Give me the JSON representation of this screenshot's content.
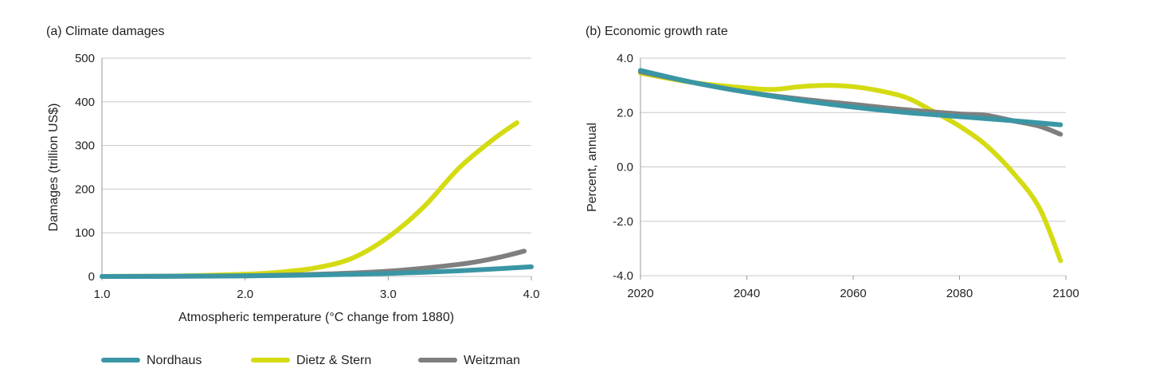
{
  "colors": {
    "nordhaus": "#3a96a4",
    "dietz_stern": "#d4db13",
    "weitzman": "#7f7f7f"
  },
  "legend": {
    "nordhaus": "Nordhaus",
    "dietz_stern": "Dietz & Stern",
    "weitzman": "Weitzman"
  },
  "chart_data": [
    {
      "type": "line",
      "title": "(a) Climate damages",
      "xlabel": "Atmospheric temperature (°C change from 1880)",
      "ylabel": "Damages (trillion US$)",
      "xlim": [
        1.0,
        4.0
      ],
      "ylim": [
        0,
        500
      ],
      "xticks": [
        "1.0",
        "2.0",
        "3.0",
        "4.0"
      ],
      "yticks": [
        "0",
        "100",
        "200",
        "300",
        "400",
        "500"
      ],
      "grid": true,
      "series": [
        {
          "name": "Nordhaus",
          "color": "#3a96a4",
          "x": [
            1.0,
            1.5,
            2.0,
            2.5,
            3.0,
            3.5,
            4.0
          ],
          "y": [
            0,
            0.5,
            1.5,
            3.5,
            7,
            13,
            22
          ]
        },
        {
          "name": "Dietz & Stern",
          "color": "#d4db13",
          "x": [
            1.0,
            1.5,
            2.0,
            2.25,
            2.5,
            2.75,
            3.0,
            3.25,
            3.5,
            3.75,
            3.9
          ],
          "y": [
            0,
            1,
            5,
            10,
            20,
            42,
            90,
            160,
            250,
            318,
            352
          ]
        },
        {
          "name": "Weitzman",
          "color": "#7f7f7f",
          "x": [
            1.0,
            1.5,
            2.0,
            2.5,
            3.0,
            3.5,
            3.75,
            3.95
          ],
          "y": [
            0,
            0.5,
            1.5,
            5,
            12,
            28,
            42,
            58
          ]
        }
      ]
    },
    {
      "type": "line",
      "title": "(b) Economic growth rate",
      "xlabel": "",
      "ylabel": "Percent, annual",
      "xlim": [
        2020,
        2100
      ],
      "ylim": [
        -4.0,
        4.0
      ],
      "xticks": [
        "2020",
        "2040",
        "2060",
        "2080",
        "2100"
      ],
      "yticks": [
        "4.0",
        "2.0",
        "0.0",
        "-2.0",
        "-4.0"
      ],
      "grid": true,
      "series": [
        {
          "name": "Nordhaus",
          "color": "#3a96a4",
          "x": [
            2020,
            2030,
            2040,
            2050,
            2060,
            2070,
            2080,
            2090,
            2099
          ],
          "y": [
            3.55,
            3.1,
            2.75,
            2.45,
            2.2,
            2.0,
            1.85,
            1.7,
            1.55
          ]
        },
        {
          "name": "Dietz & Stern",
          "color": "#d4db13",
          "x": [
            2020,
            2030,
            2040,
            2045,
            2050,
            2055,
            2060,
            2065,
            2070,
            2075,
            2080,
            2085,
            2090,
            2095,
            2099
          ],
          "y": [
            3.45,
            3.1,
            2.9,
            2.85,
            2.95,
            3.0,
            2.95,
            2.8,
            2.55,
            2.05,
            1.5,
            0.8,
            -0.2,
            -1.5,
            -3.45
          ]
        },
        {
          "name": "Weitzman",
          "color": "#7f7f7f",
          "x": [
            2020,
            2030,
            2040,
            2050,
            2060,
            2070,
            2080,
            2085,
            2090,
            2095,
            2099
          ],
          "y": [
            3.5,
            3.1,
            2.75,
            2.5,
            2.3,
            2.1,
            1.95,
            1.9,
            1.7,
            1.5,
            1.2
          ]
        }
      ]
    }
  ]
}
